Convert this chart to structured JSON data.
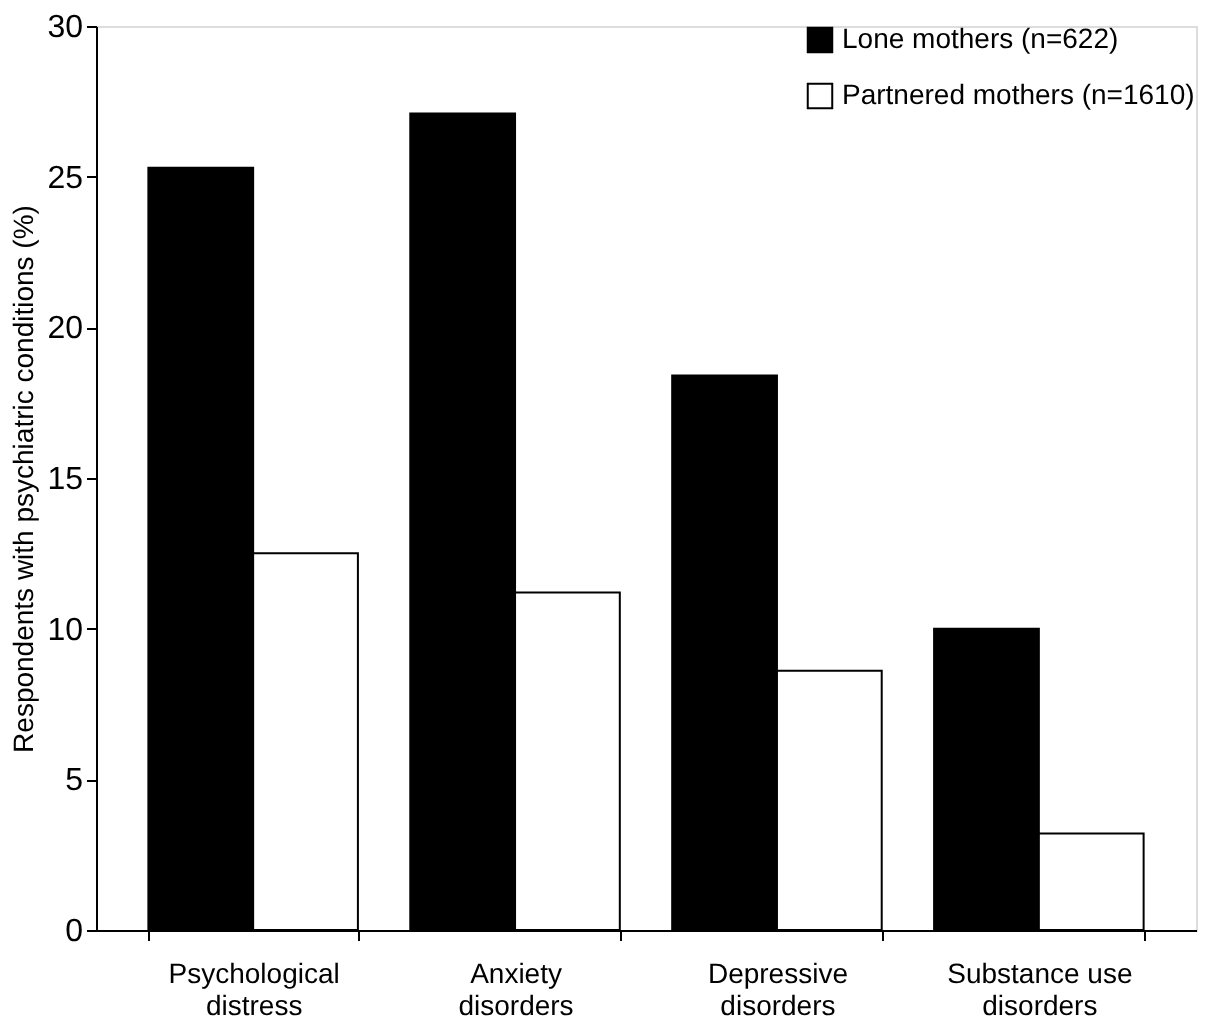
{
  "chart_data": {
    "type": "bar",
    "categories": [
      "Psychological distress",
      "Anxiety disorders",
      "Depressive disorders",
      "Substance use disorders"
    ],
    "series": [
      {
        "name": "Lone mothers (n=622)",
        "color": "#000000",
        "values": [
          25.3,
          27.1,
          18.4,
          10.0
        ]
      },
      {
        "name": "Partnered mothers (n=1610)",
        "color": "#ffffff",
        "values": [
          12.5,
          11.2,
          8.6,
          3.2
        ]
      }
    ],
    "ylabel": "Respondents with psychiatric conditions (%)",
    "ylim": [
      0,
      30
    ],
    "yticks": [
      0,
      5,
      10,
      15,
      20,
      25,
      30
    ],
    "grid": false,
    "legend": "top right"
  }
}
